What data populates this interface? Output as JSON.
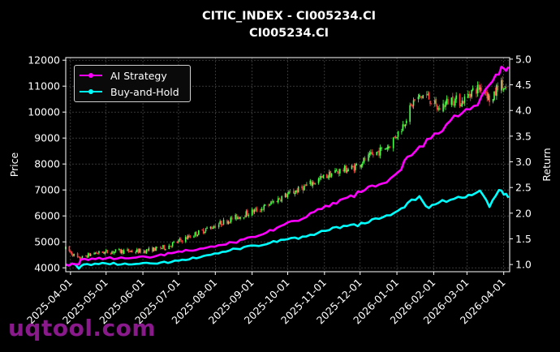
{
  "chart_data": {
    "type": "line",
    "title": "CITIC_INDEX - CI005234.CI",
    "subtitle": "CI005234.CI",
    "ylabel_left": "Price",
    "ylabel_right": "Return",
    "x_ticks": [
      "2025-04-01",
      "2025-05-01",
      "2025-06-01",
      "2025-07-01",
      "2025-08-01",
      "2025-09-01",
      "2025-10-01",
      "2025-11-01",
      "2025-12-01",
      "2026-01-01",
      "2026-02-01",
      "2026-03-01",
      "2026-04-01"
    ],
    "y_ticks_left": [
      4000,
      5000,
      6000,
      7000,
      8000,
      9000,
      10000,
      11000,
      12000
    ],
    "y_ticks_right": [
      1.0,
      1.5,
      2.0,
      2.5,
      3.0,
      3.5,
      4.0,
      4.5,
      5.0
    ],
    "ylim_left": [
      3850,
      12100
    ],
    "ylim_right": [
      0.86,
      5.03
    ],
    "grid": true,
    "legend_position": "top-left",
    "colors": {
      "ai": "#ff00ff",
      "bh": "#00ffff",
      "up": "#4cff4c",
      "down": "#ff4040"
    },
    "series": [
      {
        "name": "AI Strategy",
        "color": "#ff00ff",
        "points": [
          [
            "2025-03-28",
            1.0
          ],
          [
            "2025-04-08",
            1.0
          ],
          [
            "2025-04-10",
            1.1
          ],
          [
            "2025-05-01",
            1.12
          ],
          [
            "2025-05-20",
            1.12
          ],
          [
            "2025-06-10",
            1.15
          ],
          [
            "2025-06-25",
            1.22
          ],
          [
            "2025-07-10",
            1.27
          ],
          [
            "2025-07-25",
            1.33
          ],
          [
            "2025-08-10",
            1.39
          ],
          [
            "2025-08-25",
            1.49
          ],
          [
            "2025-09-10",
            1.59
          ],
          [
            "2025-09-25",
            1.75
          ],
          [
            "2025-10-10",
            1.85
          ],
          [
            "2025-10-20",
            2.0
          ],
          [
            "2025-11-05",
            2.13
          ],
          [
            "2025-11-20",
            2.3
          ],
          [
            "2025-12-05",
            2.45
          ],
          [
            "2025-12-20",
            2.58
          ],
          [
            "2026-01-02",
            2.8
          ],
          [
            "2026-01-10",
            3.1
          ],
          [
            "2026-01-20",
            3.3
          ],
          [
            "2026-02-05",
            3.55
          ],
          [
            "2026-02-15",
            3.8
          ],
          [
            "2026-02-25",
            3.95
          ],
          [
            "2026-03-10",
            4.1
          ],
          [
            "2026-03-20",
            4.5
          ],
          [
            "2026-03-28",
            4.7
          ],
          [
            "2026-04-01",
            4.82
          ],
          [
            "2026-04-05",
            4.85
          ]
        ]
      },
      {
        "name": "Buy-and-Hold",
        "color": "#00ffff",
        "points": [
          [
            "2025-03-28",
            1.0
          ],
          [
            "2025-04-05",
            1.0
          ],
          [
            "2025-04-08",
            0.92
          ],
          [
            "2025-04-12",
            1.0
          ],
          [
            "2025-05-01",
            1.02
          ],
          [
            "2025-05-20",
            1.0
          ],
          [
            "2025-06-10",
            1.02
          ],
          [
            "2025-06-25",
            1.05
          ],
          [
            "2025-07-10",
            1.1
          ],
          [
            "2025-07-25",
            1.18
          ],
          [
            "2025-08-10",
            1.25
          ],
          [
            "2025-08-25",
            1.34
          ],
          [
            "2025-09-10",
            1.38
          ],
          [
            "2025-09-25",
            1.48
          ],
          [
            "2025-10-10",
            1.5
          ],
          [
            "2025-10-20",
            1.58
          ],
          [
            "2025-11-05",
            1.67
          ],
          [
            "2025-11-20",
            1.75
          ],
          [
            "2025-12-05",
            1.8
          ],
          [
            "2025-12-20",
            1.92
          ],
          [
            "2026-01-02",
            2.05
          ],
          [
            "2026-01-10",
            2.2
          ],
          [
            "2026-01-20",
            2.33
          ],
          [
            "2026-01-28",
            2.1
          ],
          [
            "2026-02-05",
            2.2
          ],
          [
            "2026-02-15",
            2.26
          ],
          [
            "2026-02-25",
            2.3
          ],
          [
            "2026-03-05",
            2.35
          ],
          [
            "2026-03-12",
            2.44
          ],
          [
            "2026-03-20",
            2.12
          ],
          [
            "2026-03-28",
            2.45
          ],
          [
            "2026-04-01",
            2.36
          ],
          [
            "2026-04-05",
            2.3
          ]
        ]
      },
      {
        "name": "Price",
        "type": "candlestick",
        "points": [
          [
            "2025-03-28",
            4740
          ],
          [
            "2025-04-08",
            4340
          ],
          [
            "2025-04-20",
            4560
          ],
          [
            "2025-05-10",
            4640
          ],
          [
            "2025-06-01",
            4640
          ],
          [
            "2025-06-20",
            4800
          ],
          [
            "2025-07-10",
            5200
          ],
          [
            "2025-07-25",
            5500
          ],
          [
            "2025-08-10",
            5800
          ],
          [
            "2025-08-25",
            6050
          ],
          [
            "2025-09-10",
            6300
          ],
          [
            "2025-09-25",
            6700
          ],
          [
            "2025-10-10",
            7000
          ],
          [
            "2025-10-25",
            7350
          ],
          [
            "2025-11-10",
            7700
          ],
          [
            "2025-11-25",
            7850
          ],
          [
            "2025-12-10",
            8300
          ],
          [
            "2025-12-25",
            8700
          ],
          [
            "2026-01-05",
            9400
          ],
          [
            "2026-01-15",
            10400
          ],
          [
            "2026-01-25",
            10700
          ],
          [
            "2026-02-05",
            10100
          ],
          [
            "2026-02-15",
            10500
          ],
          [
            "2026-02-25",
            10400
          ],
          [
            "2026-03-05",
            10800
          ],
          [
            "2026-03-15",
            11000
          ],
          [
            "2026-03-22",
            10300
          ],
          [
            "2026-03-28",
            11200
          ],
          [
            "2026-04-05",
            10600
          ]
        ]
      }
    ]
  },
  "watermark": "uqtool.com"
}
